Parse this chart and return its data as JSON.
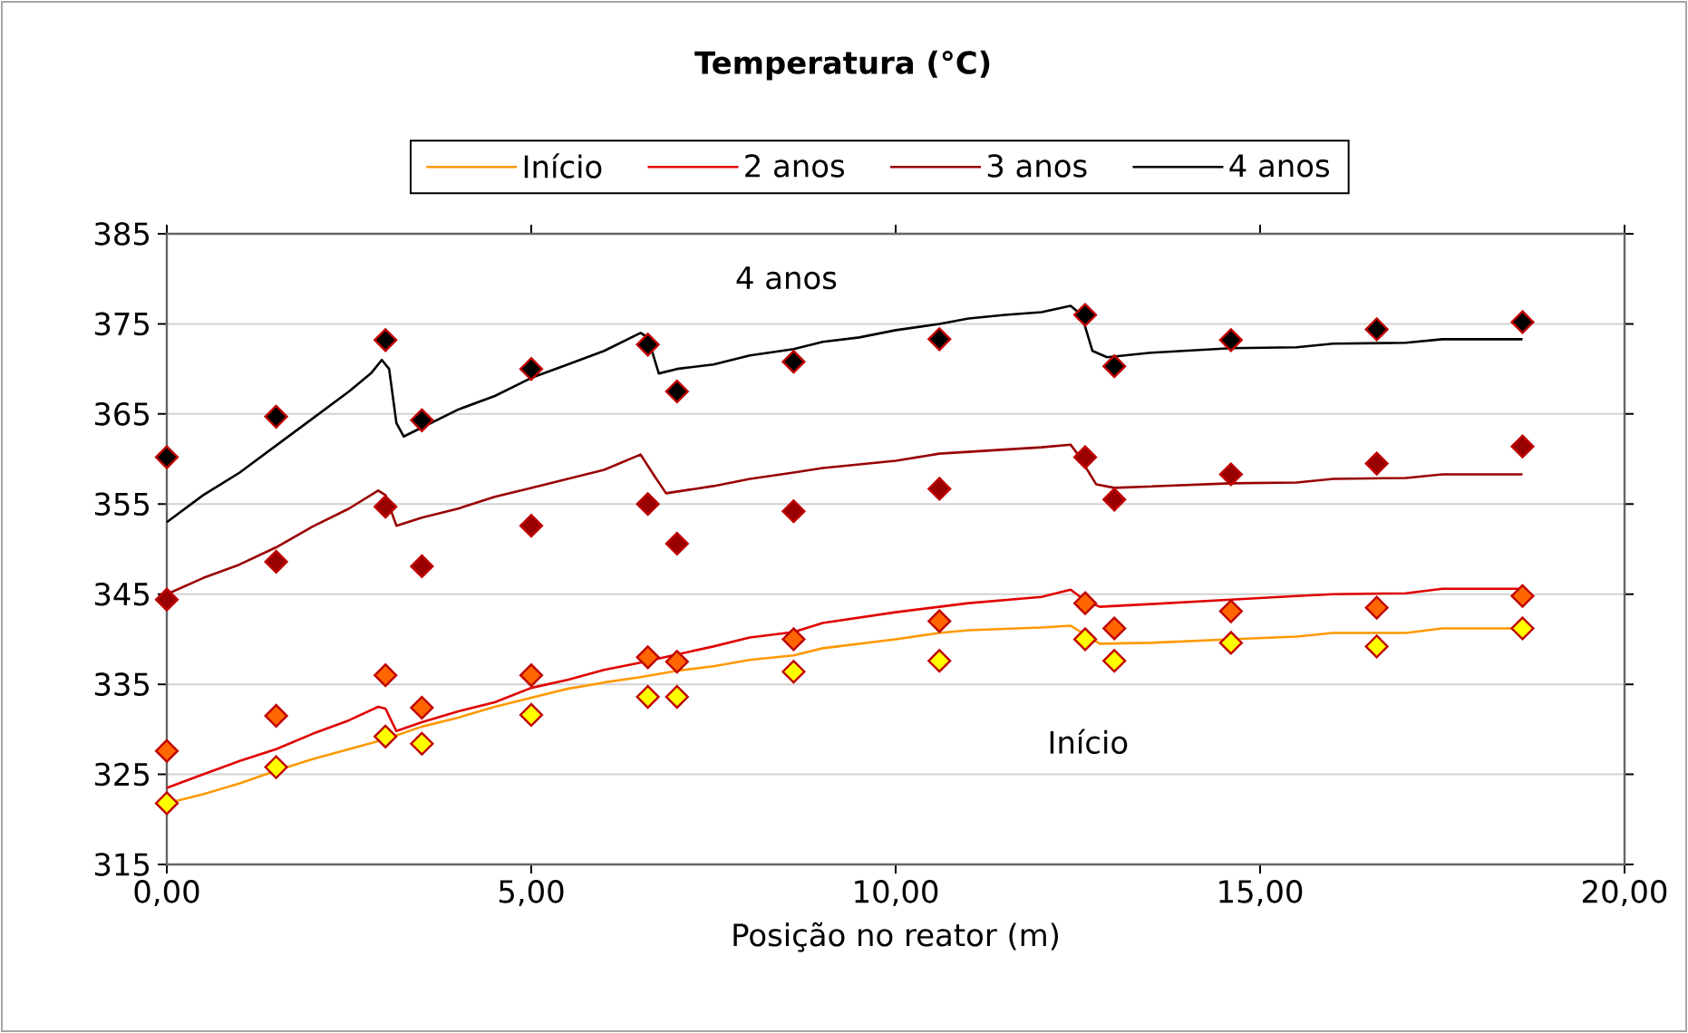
{
  "chart_data": {
    "type": "line",
    "title": "Temperatura (°C)",
    "xlabel": "Posição no reator (m)",
    "xlim": [
      0,
      20
    ],
    "ylim": [
      315,
      385
    ],
    "xticks": [
      {
        "value": 0,
        "label": "0,00"
      },
      {
        "value": 5,
        "label": "5,00"
      },
      {
        "value": 10,
        "label": "10,00"
      },
      {
        "value": 15,
        "label": "15,00"
      },
      {
        "value": 20,
        "label": "20,00"
      }
    ],
    "yticks": [
      315,
      325,
      335,
      345,
      355,
      365,
      375,
      385
    ],
    "grid": "y",
    "legend": "top",
    "line_style": "solid",
    "annotations": [
      "4 anos",
      "Início"
    ],
    "series": [
      {
        "name": "Início",
        "color": "#ff9900",
        "marker": "none",
        "x": [
          0,
          0.5,
          1,
          1.5,
          2,
          2.5,
          3,
          3.5,
          4,
          4.5,
          5,
          5.5,
          6,
          6.5,
          7,
          7.5,
          8,
          8.6,
          9,
          10,
          10.6,
          11,
          12,
          12.4,
          12.6,
          12.8,
          13.5,
          14.6,
          15.5,
          16,
          17,
          17.5,
          18.6
        ],
        "values": [
          321.8,
          322.8,
          324,
          325.4,
          326.7,
          327.8,
          328.9,
          330.3,
          331.3,
          332.5,
          333.5,
          334.5,
          335.2,
          335.8,
          336.5,
          337,
          337.7,
          338.2,
          339,
          340,
          340.7,
          341,
          341.3,
          341.5,
          340.5,
          339.5,
          339.6,
          340,
          340.3,
          340.7,
          340.7,
          341.2,
          341.2
        ]
      },
      {
        "name": "2 anos",
        "color": "#e00000",
        "marker": "none",
        "x": [
          0,
          0.5,
          1,
          1.5,
          2,
          2.5,
          2.9,
          3.0,
          3.15,
          3.5,
          4,
          4.5,
          5,
          5.5,
          6,
          6.5,
          7,
          7.5,
          8,
          8.6,
          9,
          10,
          10.6,
          11,
          12,
          12.4,
          12.6,
          12.8,
          13.5,
          14.6,
          15.5,
          16,
          17,
          17.5,
          18.6
        ],
        "values": [
          323.5,
          325,
          326.5,
          327.8,
          329.5,
          331,
          332.5,
          332.3,
          329.8,
          330.8,
          332,
          333,
          334.6,
          335.5,
          336.6,
          337.4,
          338.3,
          339.2,
          340.2,
          340.8,
          341.8,
          343,
          343.6,
          344,
          344.7,
          345.5,
          344.3,
          343.6,
          343.9,
          344.4,
          344.8,
          345,
          345.1,
          345.6,
          345.6
        ]
      },
      {
        "name": "3 anos",
        "color": "#990000",
        "marker": "none",
        "x": [
          0,
          0.5,
          1,
          1.5,
          2,
          2.5,
          2.9,
          3.0,
          3.15,
          3.5,
          4,
          4.5,
          5,
          5.5,
          6,
          6.5,
          6.7,
          6.85,
          7.5,
          8,
          8.6,
          9,
          10,
          10.6,
          11,
          12,
          12.4,
          12.5,
          12.75,
          13,
          14.6,
          15.5,
          16,
          17,
          17.5,
          18.6
        ],
        "values": [
          345,
          346.8,
          348.3,
          350.2,
          352.5,
          354.5,
          356.5,
          356,
          352.6,
          353.5,
          354.5,
          355.8,
          356.8,
          357.8,
          358.8,
          360.5,
          358,
          356.2,
          357,
          357.8,
          358.5,
          359,
          359.8,
          360.6,
          360.8,
          361.3,
          361.6,
          360.5,
          357.2,
          356.8,
          357.3,
          357.4,
          357.8,
          357.9,
          358.3,
          358.3
        ]
      },
      {
        "name": "4 anos",
        "color": "#000000",
        "marker": "none",
        "x": [
          0,
          0.5,
          1,
          1.5,
          2,
          2.5,
          2.8,
          2.95,
          3.05,
          3.15,
          3.25,
          3.5,
          4,
          4.5,
          5,
          5.5,
          6,
          6.5,
          6.6,
          6.75,
          7,
          7.5,
          8,
          8.6,
          9,
          9.5,
          10,
          10.6,
          11,
          11.5,
          12,
          12.4,
          12.55,
          12.7,
          12.9,
          13.5,
          14.6,
          15.5,
          16,
          17,
          17.5,
          18.6
        ],
        "values": [
          353,
          356,
          358.5,
          361.5,
          364.5,
          367.5,
          369.5,
          371,
          370,
          364,
          362.5,
          363.5,
          365.5,
          367,
          369,
          370.5,
          372,
          374,
          373.5,
          369.5,
          370,
          370.5,
          371.5,
          372.2,
          373,
          373.5,
          374.3,
          375,
          375.6,
          376,
          376.3,
          377,
          376,
          372,
          371.3,
          371.8,
          372.3,
          372.4,
          372.8,
          372.9,
          373.3,
          373.3
        ]
      },
      {
        "type": "scatter",
        "color": "#ffff00",
        "marker": "diamond",
        "x": [
          0,
          1.5,
          3,
          3.5,
          5,
          6.6,
          7,
          8.6,
          10.6,
          12.6,
          13,
          14.6,
          16.6,
          18.6
        ],
        "values": [
          321.8,
          325.8,
          329.2,
          328.4,
          331.6,
          333.6,
          333.6,
          336.4,
          337.6,
          340,
          337.6,
          339.6,
          339.2,
          341.2
        ]
      },
      {
        "type": "scatter",
        "color": "#ff6600",
        "marker": "diamond",
        "x": [
          0,
          1.5,
          3,
          3.5,
          5,
          6.6,
          7,
          8.6,
          10.6,
          12.6,
          13,
          14.6,
          16.6,
          18.6
        ],
        "values": [
          327.6,
          331.5,
          336,
          332.4,
          336,
          338,
          337.5,
          340,
          342,
          344,
          341.2,
          343.1,
          343.5,
          344.8
        ]
      },
      {
        "type": "scatter",
        "color": "#990000",
        "marker": "diamond",
        "x": [
          0,
          1.5,
          3,
          3.5,
          5,
          6.6,
          7,
          8.6,
          10.6,
          12.6,
          13,
          14.6,
          16.6,
          18.6
        ],
        "values": [
          344.4,
          348.6,
          354.7,
          348.1,
          352.6,
          355,
          350.6,
          354.2,
          356.7,
          360.2,
          355.5,
          358.3,
          359.5,
          361.4
        ]
      },
      {
        "type": "scatter",
        "color": "#000000",
        "marker": "diamond",
        "x": [
          0,
          1.5,
          3,
          3.5,
          5,
          6.6,
          7,
          8.6,
          10.6,
          12.6,
          13,
          14.6,
          16.6,
          18.6
        ],
        "values": [
          360.2,
          364.7,
          373.2,
          364.3,
          370,
          372.7,
          367.5,
          370.8,
          373.3,
          376,
          370.3,
          373.2,
          374.4,
          375.2
        ]
      }
    ]
  }
}
